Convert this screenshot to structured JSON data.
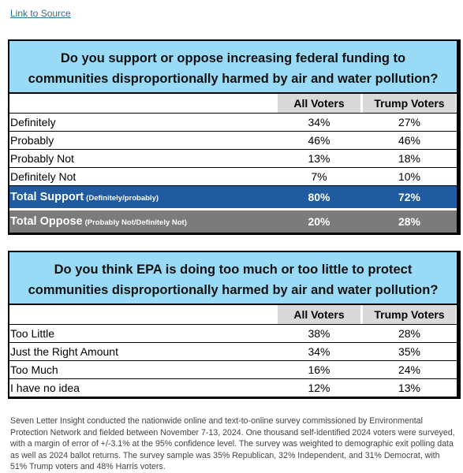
{
  "link": "Link to Source",
  "tables": [
    {
      "question": "Do you support or oppose increasing federal funding to communities disproportionally harmed by air and water pollution?",
      "columns": [
        "All Voters",
        "Trump Voters"
      ],
      "rows": [
        [
          "Definitely",
          "34%",
          "27%"
        ],
        [
          "Probably",
          "46%",
          "46%"
        ],
        [
          "Probably Not",
          "13%",
          "18%"
        ],
        [
          "Definitely Not",
          "7%",
          "10%"
        ]
      ],
      "totals": [
        {
          "label": "Total Support",
          "note": "(Definitely/probably)",
          "values": [
            "80%",
            "72%"
          ]
        },
        {
          "label": "Total Oppose",
          "note": "(Probably Not/Definitely Not)",
          "values": [
            "20%",
            "28%"
          ]
        }
      ]
    },
    {
      "question": "Do you think EPA is doing too much or too little to protect communities disproportionally harmed by air and water pollution?",
      "columns": [
        "All Voters",
        "Trump Voters"
      ],
      "rows": [
        [
          "Too Little",
          "38%",
          "28%"
        ],
        [
          "Just the Right Amount",
          "34%",
          "35%"
        ],
        [
          "Too Much",
          "16%",
          "24%"
        ],
        [
          "I have no idea",
          "12%",
          "13%"
        ]
      ]
    }
  ],
  "footnote": "Seven Letter Insight conducted the nationwide online and text-to-online survey commissioned by Environmental Protection Network and fielded between November 7-13, 2024. One thousand self-identified 2024 voters were surveyed, with a margin of error of +/-3.1% at the 95% confidence level. The survey was weighted to demographic exit polling data as well as 2024 ballot returns. The survey sample was 35% Republican, 32% Independent, and 31% Democrat, with 51% Trump voters and 48% Harris voters."
}
